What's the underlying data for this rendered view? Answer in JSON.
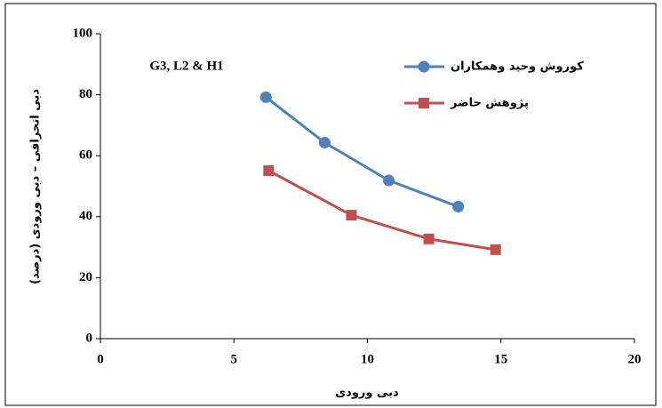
{
  "chart_data": {
    "type": "line",
    "annotation": "G3, L2 & H1",
    "x_label": "دبی ورودی",
    "y_label": "دبی انحرافی – دبی ورودی (درصد)",
    "xlim": [
      0,
      20
    ],
    "xticks": [
      0,
      5,
      10,
      15,
      20
    ],
    "ylim": [
      0,
      100
    ],
    "yticks": [
      0,
      20,
      40,
      60,
      80,
      100
    ],
    "legend": "top-right",
    "series": [
      {
        "name": "کوروش وحید وهمکاران",
        "color": "#4f81bd",
        "marker": "circle",
        "x": [
          6.2,
          8.4,
          10.8,
          13.4
        ],
        "values": [
          79.2,
          64.3,
          51.9,
          43.3
        ]
      },
      {
        "name": "پژوهش حاضر",
        "color": "#c0504d",
        "marker": "square",
        "x": [
          6.3,
          9.4,
          12.3,
          14.8
        ],
        "values": [
          55.1,
          40.5,
          32.7,
          29.2
        ]
      }
    ]
  }
}
